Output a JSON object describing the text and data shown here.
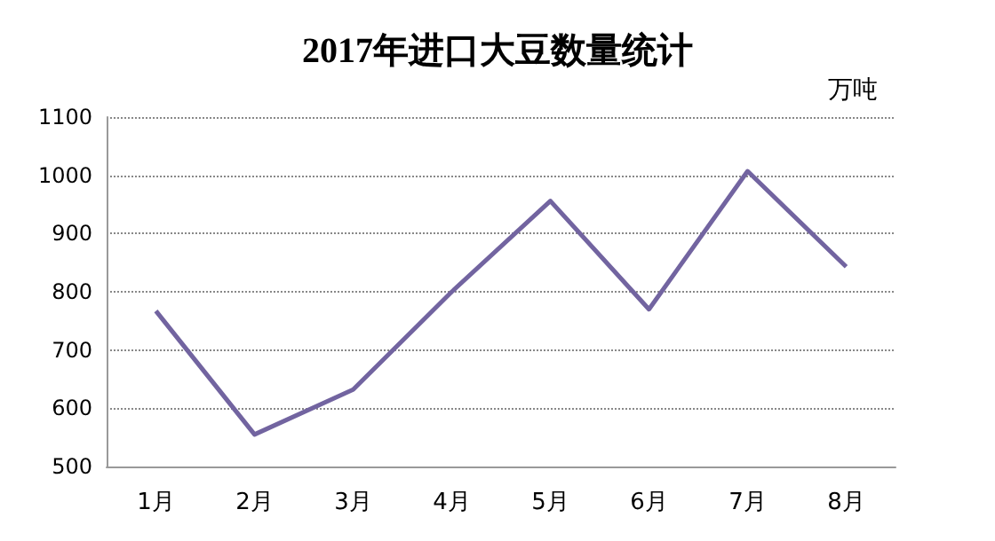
{
  "chart_data": {
    "type": "line",
    "title": "2017年进口大豆数量统计",
    "ylabel": "万吨",
    "categories": [
      "1月",
      "2月",
      "3月",
      "4月",
      "5月",
      "6月",
      "7月",
      "8月"
    ],
    "series": [
      {
        "color": "#7264a0",
        "values": [
          767,
          555,
          632,
          800,
          956,
          770,
          1007,
          843
        ]
      }
    ],
    "ylim": [
      500,
      1100
    ],
    "yticks": [
      500,
      600,
      700,
      800,
      900,
      1000,
      1100
    ],
    "grid": "y",
    "marker": "none",
    "line_style": "solid"
  }
}
